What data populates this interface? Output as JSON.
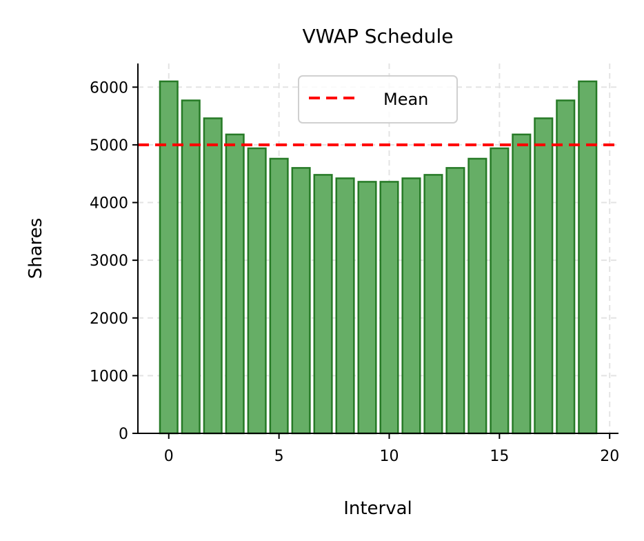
{
  "chart_data": {
    "type": "bar",
    "title": "VWAP Schedule",
    "xlabel": "Interval",
    "ylabel": "Shares",
    "x": [
      0,
      1,
      2,
      3,
      4,
      5,
      6,
      7,
      8,
      9,
      10,
      11,
      12,
      13,
      14,
      15,
      16,
      17,
      18,
      19
    ],
    "values": [
      6100,
      5770,
      5460,
      5180,
      4940,
      4760,
      4600,
      4480,
      4420,
      4360,
      4360,
      4420,
      4480,
      4600,
      4760,
      4940,
      5180,
      5460,
      5770,
      6100
    ],
    "xlim": [
      -1.4,
      20.4
    ],
    "ylim": [
      0,
      6410
    ],
    "xticks": [
      0,
      5,
      10,
      15,
      20
    ],
    "yticks": [
      0,
      1000,
      2000,
      3000,
      4000,
      5000,
      6000
    ],
    "grid": true,
    "mean_line": {
      "value": 5000,
      "label": "Mean",
      "color": "#ff0000",
      "style": "dashed"
    },
    "legend": {
      "position": "top-center",
      "entries": [
        "Mean"
      ]
    },
    "colors": {
      "bar_fill": "#66ae66",
      "bar_edge": "#267a26"
    }
  }
}
